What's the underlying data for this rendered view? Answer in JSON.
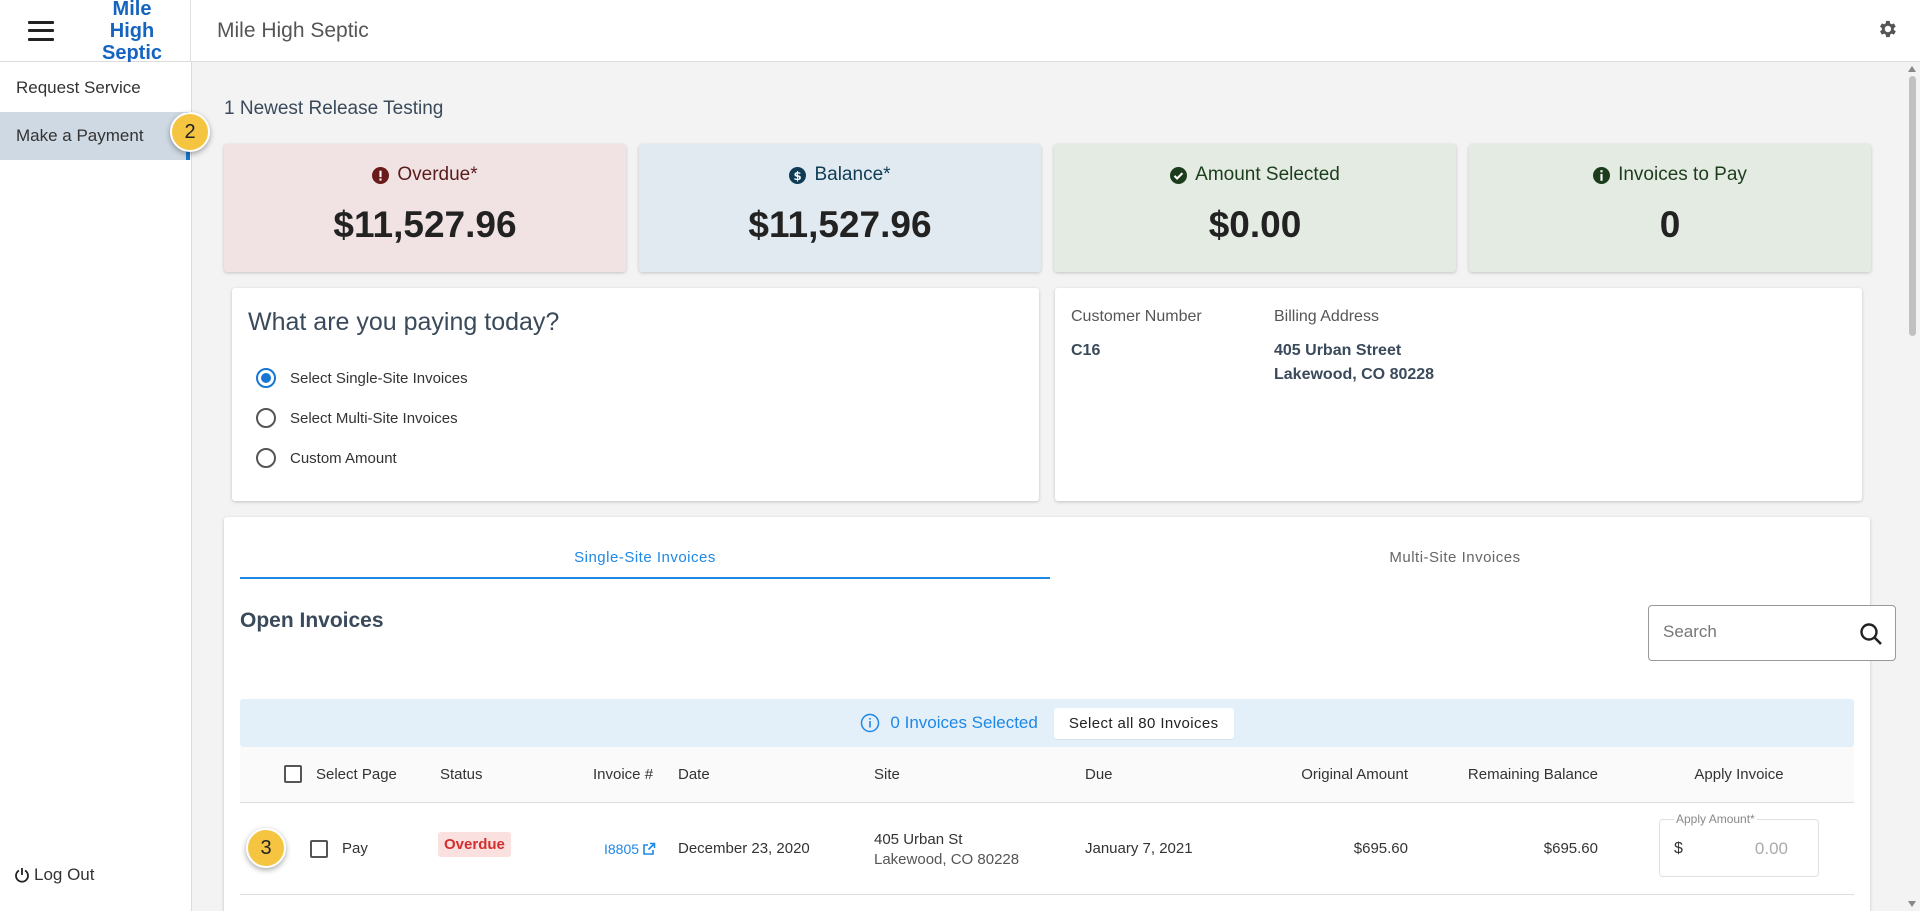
{
  "header": {
    "logo_line1": "Mile High",
    "logo_line2": "Septic",
    "app_title": "Mile High Septic"
  },
  "sidebar": {
    "items": [
      {
        "label": "Request Service",
        "active": false
      },
      {
        "label": "Make a Payment",
        "active": true
      }
    ],
    "logout_label": "Log Out"
  },
  "steps": {
    "nav": "2",
    "row": "3"
  },
  "main": {
    "page_title": "1 Newest Release Testing",
    "cards": {
      "overdue": {
        "label": "Overdue*",
        "value": "$11,527.96"
      },
      "balance": {
        "label": "Balance*",
        "value": "$11,527.96"
      },
      "selected": {
        "label": "Amount Selected",
        "value": "$0.00"
      },
      "topay": {
        "label": "Invoices to Pay",
        "value": "0"
      }
    },
    "paying": {
      "heading": "What are you paying today?",
      "options": [
        "Select Single-Site Invoices",
        "Select Multi-Site Invoices",
        "Custom Amount"
      ],
      "selected_index": 0
    },
    "customer": {
      "number_label": "Customer Number",
      "number": "C16",
      "address_label": "Billing Address",
      "address_line1": "405 Urban Street",
      "address_line2": "Lakewood, CO 80228"
    },
    "tabs": [
      "Single-Site Invoices",
      "Multi-Site Invoices"
    ],
    "open_title": "Open Invoices",
    "search_placeholder": "Search",
    "selection": {
      "count_text": "0 Invoices Selected",
      "select_all_label": "Select all 80 Invoices"
    },
    "columns": {
      "select_page": "Select Page",
      "status": "Status",
      "invoice": "Invoice #",
      "date": "Date",
      "site": "Site",
      "due": "Due",
      "original": "Original Amount",
      "remaining": "Remaining Balance",
      "apply": "Apply Invoice"
    },
    "rows": [
      {
        "pay_label": "Pay",
        "status": "Overdue",
        "invoice": "I8805",
        "date": "December 23, 2020",
        "site_line1": "405 Urban St",
        "site_line2": "Lakewood, CO 80228",
        "due": "January 7, 2021",
        "original": "$695.60",
        "remaining": "$695.60",
        "apply_label": "Apply Amount*",
        "currency": "$",
        "apply_placeholder": "0.00"
      }
    ]
  },
  "colors": {
    "accent": "#1e88e5",
    "overdue_bg": "#f1e3e3",
    "balance_bg": "#e1eaf0",
    "green_bg": "#e4ebe3",
    "badge": "#f5c542"
  }
}
